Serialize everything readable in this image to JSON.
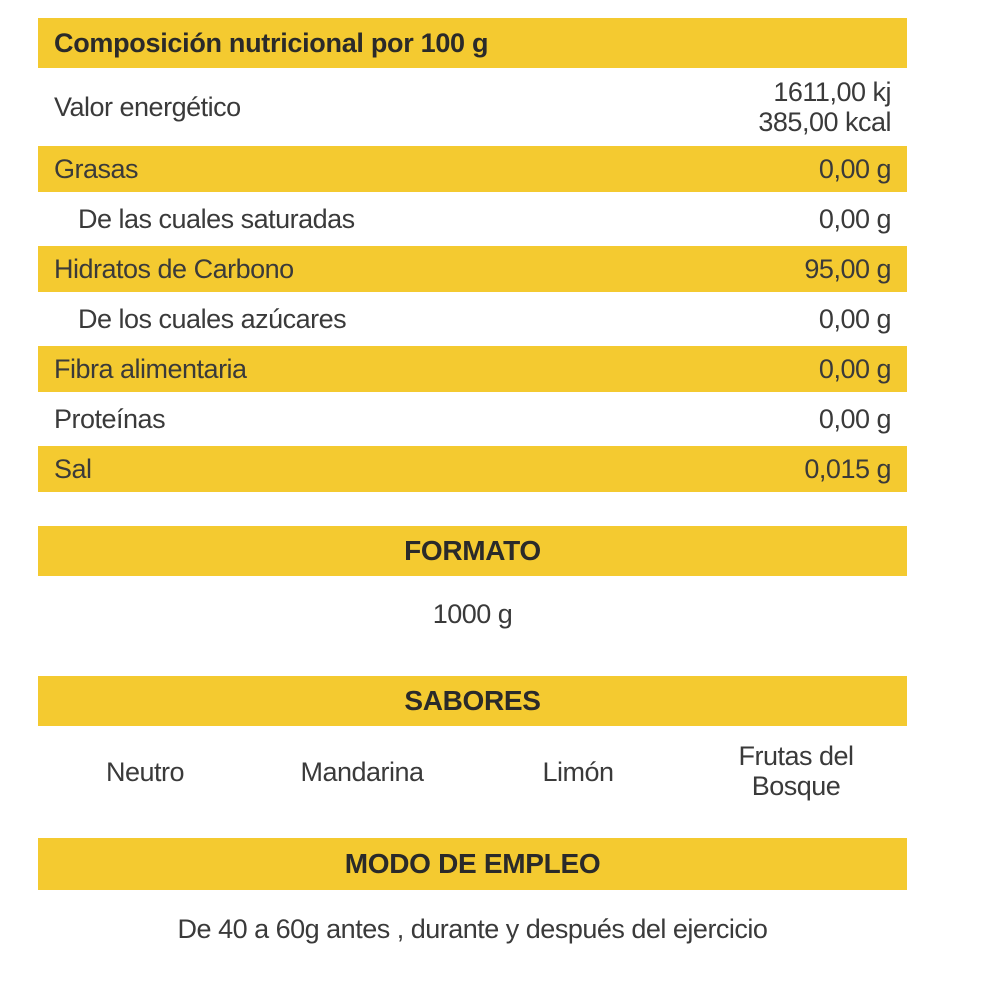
{
  "nutrition": {
    "title": "Composición nutricional por 100 g",
    "energy": {
      "label": "Valor energético",
      "kj": "1611,00 kj",
      "kcal": "385,00 kcal"
    },
    "rows": [
      {
        "label": "Grasas",
        "value": "0,00 g"
      },
      {
        "label": "De las cuales saturadas",
        "value": "0,00 g"
      },
      {
        "label": "Hidratos de Carbono",
        "value": "95,00 g"
      },
      {
        "label": "De los cuales azúcares",
        "value": "0,00 g"
      },
      {
        "label": "Fibra alimentaria",
        "value": "0,00 g"
      },
      {
        "label": "Proteínas",
        "value": "0,00 g"
      },
      {
        "label": "Sal",
        "value": "0,015 g"
      }
    ]
  },
  "formato": {
    "title": "FORMATO",
    "value": "1000 g"
  },
  "sabores": {
    "title": "SABORES",
    "items": [
      {
        "line1": "Neutro",
        "line2": ""
      },
      {
        "line1": "Mandarina",
        "line2": ""
      },
      {
        "line1": "Limón",
        "line2": ""
      },
      {
        "line1": "Frutas del",
        "line2": "Bosque"
      }
    ]
  },
  "modo_empleo": {
    "title": "MODO DE EMPLEO",
    "text": "De 40 a 60g antes , durante y después del ejercicio"
  },
  "colors": {
    "accent_yellow": "#f4ca30",
    "text_dark": "#2a2a2a",
    "text": "#3a3a3a",
    "background": "#ffffff"
  }
}
